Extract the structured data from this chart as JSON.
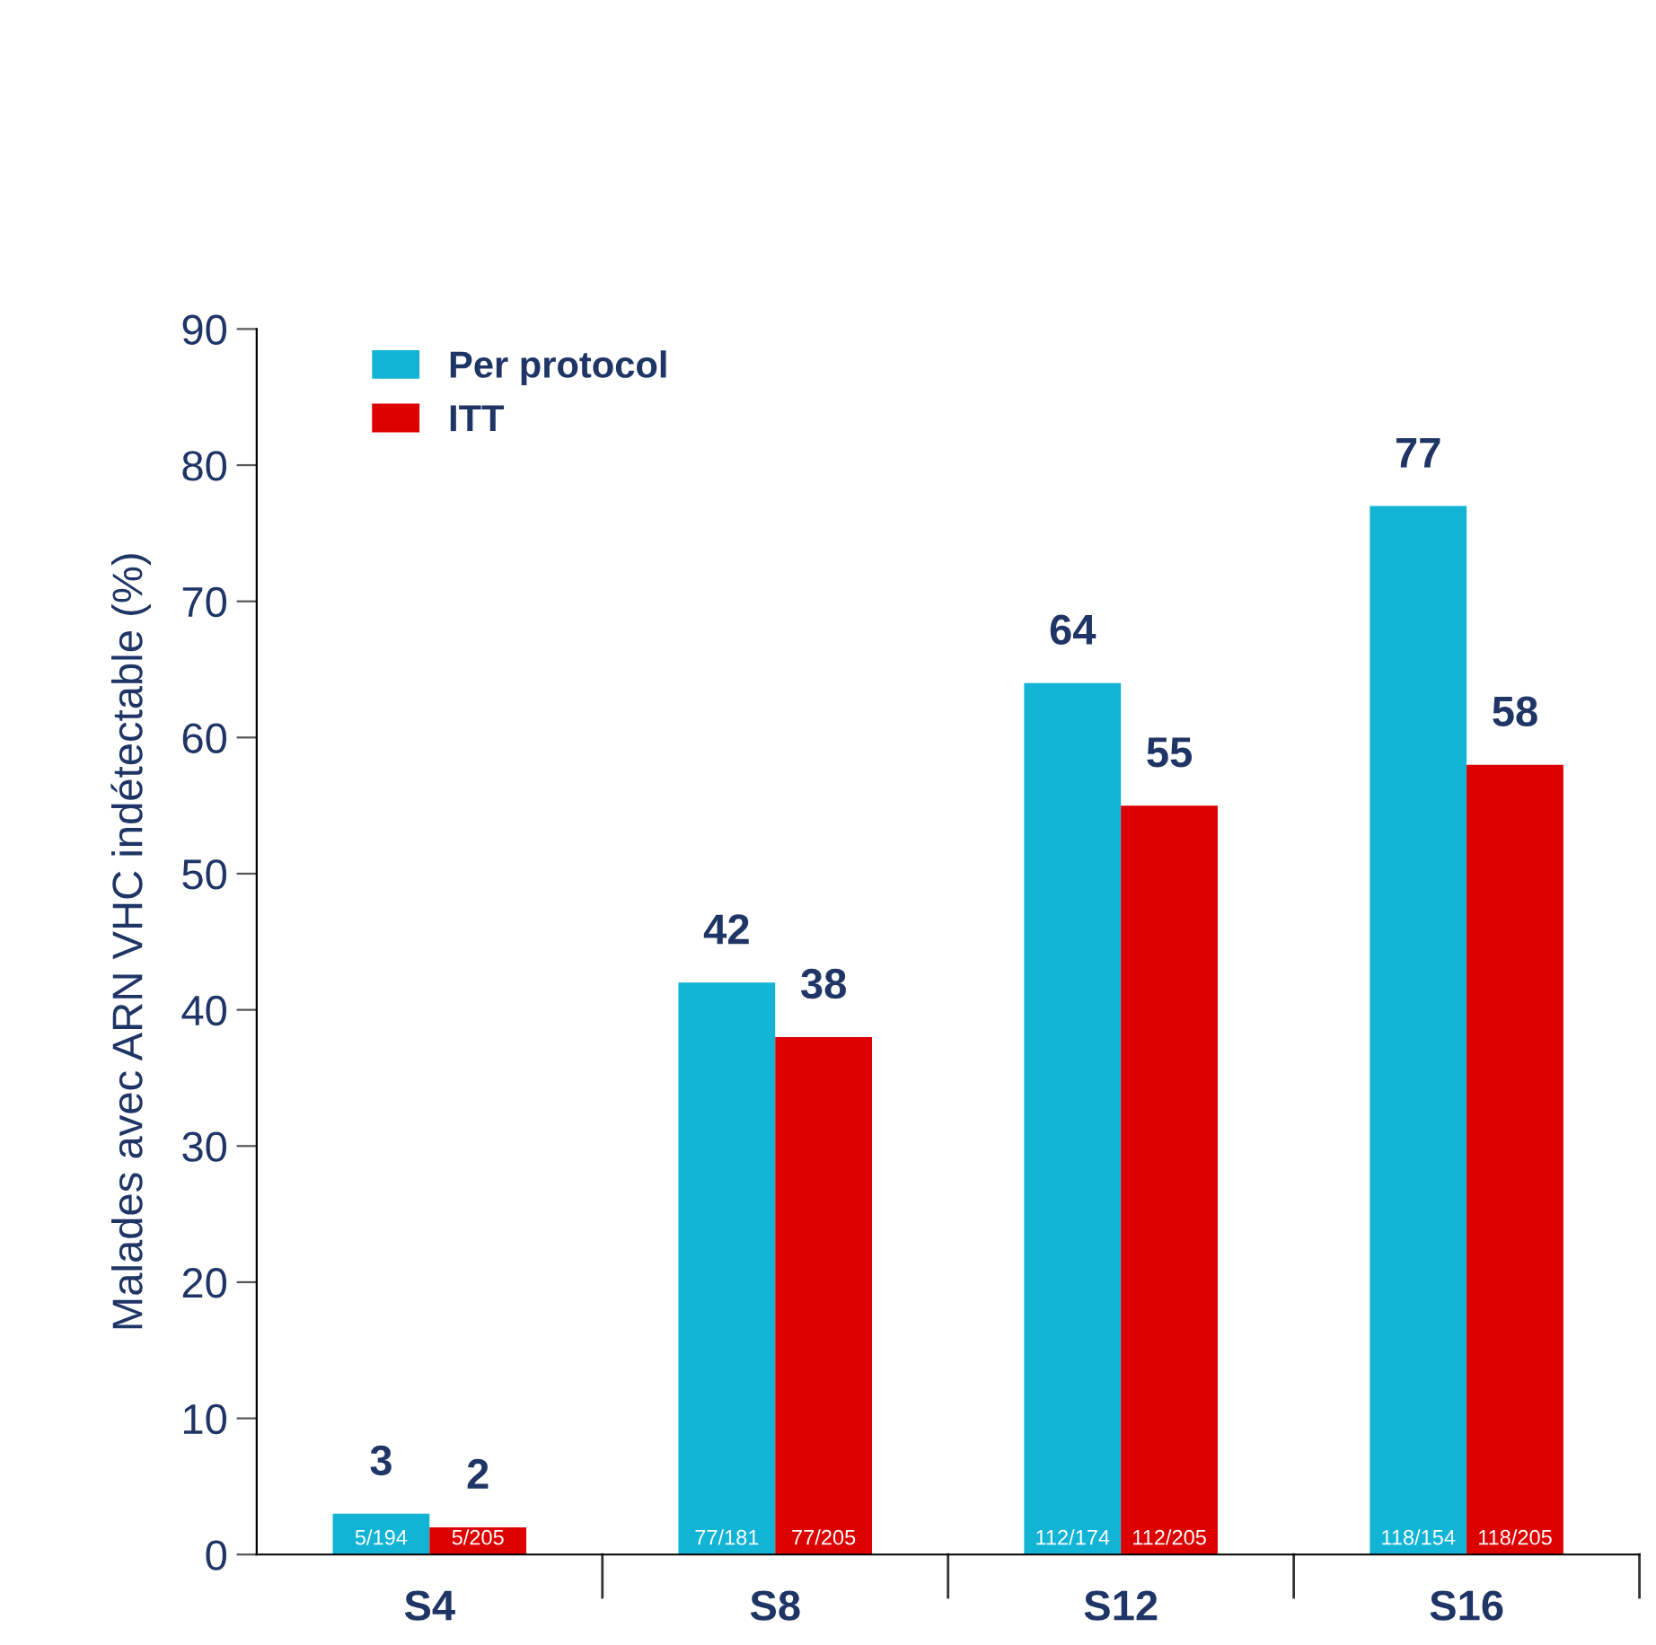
{
  "chart_data": {
    "type": "bar",
    "ylabel": "Malades avec ARN VHC indétectable (%)",
    "categories": [
      "S4",
      "S8",
      "S12",
      "S16"
    ],
    "series": [
      {
        "name": "Per protocol",
        "color": "#12b4d6",
        "values": [
          3,
          42,
          64,
          77
        ]
      },
      {
        "name": "ITT",
        "color": "#dd0000",
        "values": [
          2,
          38,
          55,
          58
        ]
      }
    ],
    "ylim": [
      0,
      90
    ],
    "yticks": [
      0,
      10,
      20,
      30,
      40,
      50,
      60,
      70,
      80,
      90
    ],
    "data_labels": true,
    "grid": false,
    "legend": "top left",
    "annotations": [
      {
        "text": "5/194",
        "x": "S4",
        "y": 0
      },
      {
        "text": "5/205",
        "x": "S4",
        "y": 0
      },
      {
        "text": "77/181",
        "x": "S8",
        "y": 0
      },
      {
        "text": "77/205",
        "x": "S8",
        "y": 0
      },
      {
        "text": "112/174",
        "x": "S12",
        "y": 0
      },
      {
        "text": "112/205",
        "x": "S12",
        "y": 0
      },
      {
        "text": "118/154",
        "x": "S16",
        "y": 0
      },
      {
        "text": "118/205",
        "x": "S16",
        "y": 0
      }
    ]
  }
}
